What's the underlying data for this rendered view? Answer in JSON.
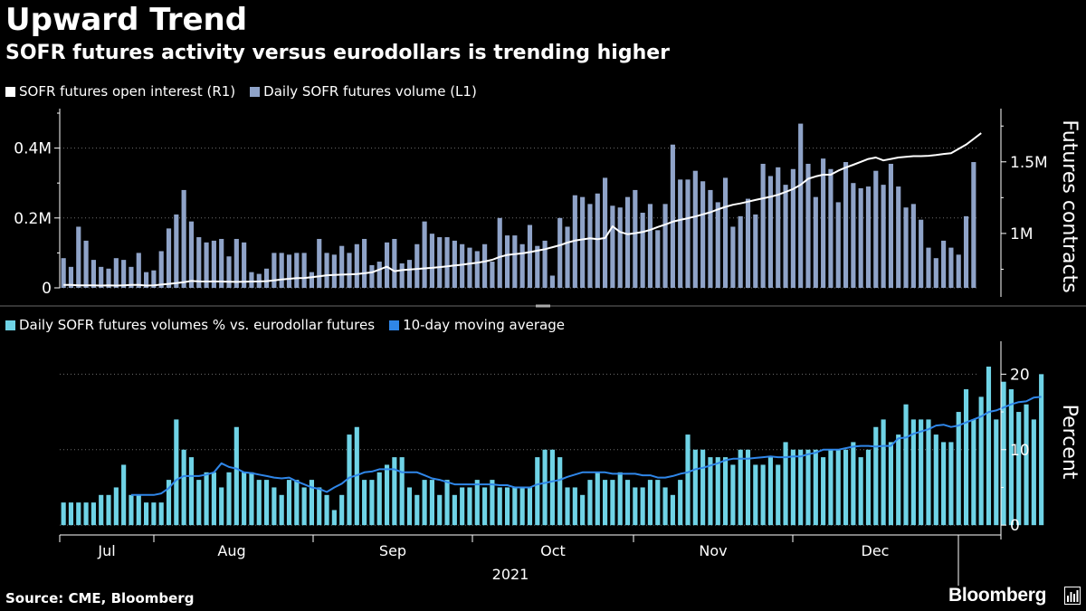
{
  "title": "Upward Trend",
  "subtitle": "SOFR futures activity versus eurodollars is trending higher",
  "source": "Source: CME, Bloomberg",
  "brand": "Bloomberg",
  "colors": {
    "background": "#000000",
    "open_interest": "#ffffff",
    "volume": "#8fa3c8",
    "pct_bars": "#6fd3e6",
    "moving_average": "#2f86e8",
    "grid": "#6e6e6e"
  },
  "chart_data": [
    {
      "type": "bar",
      "title": "Daily SOFR futures volume (L1) and SOFR futures open interest (R1)",
      "legend": [
        {
          "label": "SOFR futures open interest (R1)",
          "color": "#ffffff",
          "kind": "line"
        },
        {
          "label": "Daily SOFR futures volume (L1)",
          "color": "#8fa3c8",
          "kind": "bar"
        }
      ],
      "left_axis": {
        "ticks": [
          0,
          200000,
          400000
        ],
        "tick_labels": [
          "0",
          "0.2M",
          "0.4M"
        ],
        "ylim": [
          0,
          500000
        ]
      },
      "right_axis": {
        "ticks": [
          1000000,
          1500000
        ],
        "tick_labels": [
          "1M",
          "1.5M"
        ],
        "ylim": [
          620000,
          1840000
        ],
        "title": "Futures contracts"
      },
      "series": [
        {
          "name": "Daily SOFR futures volume (L1)",
          "axis": "left",
          "type": "bar",
          "values": [
            85000,
            60000,
            175000,
            135000,
            80000,
            60000,
            55000,
            85000,
            80000,
            60000,
            100000,
            45000,
            50000,
            105000,
            170000,
            210000,
            280000,
            190000,
            145000,
            130000,
            135000,
            140000,
            90000,
            140000,
            130000,
            45000,
            40000,
            55000,
            100000,
            100000,
            95000,
            100000,
            100000,
            45000,
            140000,
            100000,
            95000,
            120000,
            100000,
            125000,
            140000,
            65000,
            75000,
            130000,
            140000,
            70000,
            80000,
            125000,
            190000,
            155000,
            145000,
            145000,
            135000,
            125000,
            115000,
            105000,
            125000,
            75000,
            200000,
            150000,
            150000,
            125000,
            180000,
            120000,
            135000,
            35000,
            200000,
            175000,
            265000,
            260000,
            240000,
            270000,
            315000,
            235000,
            230000,
            260000,
            280000,
            215000,
            240000,
            165000,
            240000,
            410000,
            310000,
            310000,
            335000,
            305000,
            280000,
            245000,
            315000,
            175000,
            205000,
            255000,
            210000,
            355000,
            320000,
            345000,
            295000,
            340000,
            470000,
            355000,
            260000,
            370000,
            340000,
            245000,
            360000,
            300000,
            285000,
            290000,
            335000,
            295000,
            355000,
            290000,
            230000,
            240000,
            195000,
            115000,
            85000,
            135000,
            115000,
            95000,
            205000,
            360000
          ]
        },
        {
          "name": "SOFR futures open interest (R1)",
          "axis": "right",
          "type": "line",
          "values": [
            640000,
            640000,
            638000,
            637000,
            638000,
            636000,
            637000,
            636000,
            638000,
            640000,
            641000,
            636000,
            637000,
            643000,
            648000,
            653000,
            660000,
            668000,
            665000,
            664000,
            665000,
            664000,
            663000,
            662000,
            663000,
            664000,
            665000,
            667000,
            672000,
            678000,
            683000,
            688000,
            689000,
            694000,
            700000,
            708000,
            710000,
            712000,
            714000,
            716000,
            722000,
            728000,
            748000,
            768000,
            736000,
            744000,
            748000,
            752000,
            756000,
            760000,
            765000,
            770000,
            776000,
            782000,
            789000,
            796000,
            804000,
            816000,
            836000,
            850000,
            855000,
            861000,
            870000,
            880000,
            890000,
            904000,
            918000,
            936000,
            950000,
            958000,
            966000,
            960000,
            968000,
            1050000,
            1010000,
            995000,
            1002000,
            1010000,
            1025000,
            1045000,
            1062000,
            1082000,
            1095000,
            1106000,
            1118000,
            1133000,
            1148000,
            1168000,
            1186000,
            1200000,
            1210000,
            1222000,
            1234000,
            1245000,
            1256000,
            1270000,
            1290000,
            1310000,
            1340000,
            1382000,
            1398000,
            1410000,
            1410000,
            1438000,
            1460000,
            1480000,
            1500000,
            1520000,
            1530000,
            1510000,
            1520000,
            1530000,
            1535000,
            1540000,
            1540000,
            1542000,
            1548000,
            1555000,
            1560000,
            1590000,
            1620000,
            1660000,
            1700000
          ]
        }
      ]
    },
    {
      "type": "bar",
      "title": "Daily SOFR futures volumes % vs. eurodollar futures",
      "legend": [
        {
          "label": "Daily SOFR futures volumes % vs. eurodollar futures",
          "color": "#6fd3e6",
          "kind": "bar"
        },
        {
          "label": "10-day moving average",
          "color": "#2f86e8",
          "kind": "line"
        }
      ],
      "right_axis": {
        "ticks": [
          0,
          10,
          20
        ],
        "tick_labels": [
          "0",
          "10",
          "20"
        ],
        "ylim": [
          -1.3,
          24
        ],
        "title": "Percent"
      },
      "x_axis": {
        "categories": [
          "Jul",
          "Aug",
          "Sep",
          "Oct",
          "Nov",
          "Dec"
        ],
        "year_label": "2021"
      },
      "series": [
        {
          "name": "Daily SOFR futures volumes % vs. eurodollar futures",
          "type": "bar",
          "values": [
            3,
            3,
            3,
            3,
            3,
            4,
            4,
            5,
            8,
            4,
            4,
            3,
            3,
            3,
            6,
            14,
            10,
            9,
            6,
            7,
            7,
            5,
            7,
            13,
            7,
            7,
            6,
            6,
            5,
            4,
            6,
            6,
            5,
            6,
            5,
            4,
            2,
            4,
            12,
            13,
            6,
            6,
            7,
            8,
            9,
            9,
            5,
            4,
            6,
            6,
            4,
            6,
            4,
            5,
            5,
            6,
            5,
            6,
            5,
            5,
            5,
            5,
            5,
            9,
            10,
            10,
            9,
            5,
            5,
            4,
            6,
            7,
            6,
            6,
            7,
            6,
            5,
            5,
            6,
            6,
            5,
            4,
            6,
            12,
            10,
            10,
            9,
            9,
            9,
            8,
            10,
            10,
            8,
            8,
            9,
            8,
            11,
            10,
            10,
            10,
            10,
            9,
            10,
            10,
            10,
            11,
            9,
            10,
            13,
            14,
            11,
            12,
            16,
            14,
            14,
            14,
            12,
            11,
            11,
            15,
            18,
            14,
            17,
            21,
            14,
            19,
            18,
            15,
            16,
            14,
            20
          ]
        },
        {
          "name": "10-day moving average",
          "type": "line",
          "values": [
            null,
            null,
            null,
            null,
            null,
            null,
            null,
            null,
            null,
            4,
            4,
            4,
            4,
            4.2,
            4.9,
            6,
            6.5,
            6.5,
            6.5,
            6.7,
            7,
            8.2,
            7.7,
            7.5,
            7,
            6.9,
            6.7,
            6.5,
            6.3,
            6.2,
            6.3,
            5.8,
            5.4,
            5,
            4.8,
            4.4,
            5,
            5.5,
            6.3,
            6.6,
            7,
            7.1,
            7.4,
            7.4,
            7.4,
            7,
            7,
            7,
            6.6,
            6.2,
            6,
            5.7,
            5.4,
            5.4,
            5.4,
            5.4,
            5.4,
            5.4,
            5.3,
            5.3,
            5,
            5,
            5,
            5.4,
            5.6,
            5.8,
            6,
            6.4,
            6.7,
            7,
            7,
            7,
            7,
            6.8,
            6.8,
            6.8,
            6.8,
            6.6,
            6.6,
            6.3,
            6.3,
            6.5,
            6.8,
            7,
            7.4,
            7.6,
            7.9,
            8.2,
            8.6,
            8.8,
            8.8,
            8.8,
            8.9,
            9,
            9.1,
            9,
            9,
            9.1,
            9.1,
            9.4,
            9.6,
            10,
            10,
            10,
            10.2,
            10.4,
            10.5,
            10.5,
            10.4,
            10.5,
            10.5,
            11.5,
            11.6,
            12.1,
            12.4,
            12.7,
            13.2,
            13.3,
            13,
            13.2,
            13.6,
            14,
            14.4,
            15,
            15.2,
            15.6,
            16,
            16.3,
            16.4,
            16.9,
            17
          ]
        }
      ]
    }
  ]
}
